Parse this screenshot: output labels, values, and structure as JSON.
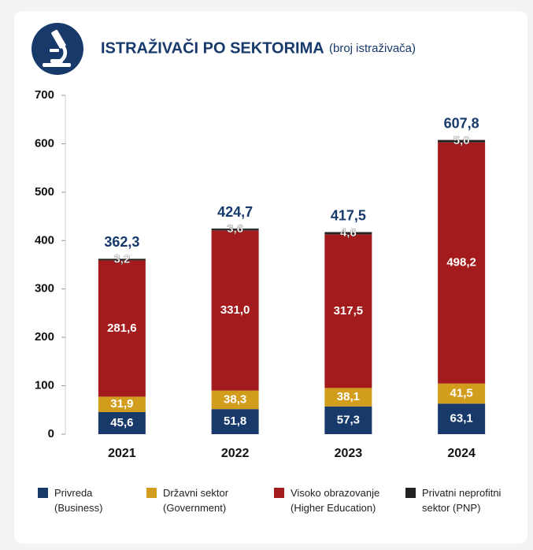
{
  "chart_data": {
    "type": "stacked_bar",
    "title": "ISTRAŽIVAČI PO SEKTORIMA",
    "subtitle": "(broj istraživača)",
    "categories": [
      "2021",
      "2022",
      "2023",
      "2024"
    ],
    "series": [
      {
        "name": "Privreda\n(Business)",
        "color": "#173a6b",
        "values": [
          45.6,
          51.8,
          57.3,
          63.1
        ],
        "value_labels": [
          "45,6",
          "51,8",
          "57,3",
          "63,1"
        ]
      },
      {
        "name": "Državni sektor\n(Government)",
        "color": "#d29d1c",
        "values": [
          31.9,
          38.3,
          38.1,
          41.5
        ],
        "value_labels": [
          "31,9",
          "38,3",
          "38,1",
          "41,5"
        ]
      },
      {
        "name": "Visoko obrazovanje\n(Higher Education)",
        "color": "#a31b1d",
        "values": [
          281.6,
          331.0,
          317.5,
          498.2
        ],
        "value_labels": [
          "281,6",
          "331,0",
          "317,5",
          "498,2"
        ]
      },
      {
        "name": "Privatni neprofitni\nsektor (PNP)",
        "color": "#222222",
        "values": [
          3.2,
          3.6,
          4.6,
          5.0
        ],
        "value_labels": [
          "3,2",
          "3,6",
          "4,6",
          "5,0"
        ]
      }
    ],
    "totals": [
      362.3,
      424.7,
      417.5,
      607.8
    ],
    "total_labels": [
      "362,3",
      "424,7",
      "417,5",
      "607,8"
    ],
    "ylim": [
      0,
      700
    ],
    "yticks": [
      0,
      100,
      200,
      300,
      400,
      500,
      600,
      700
    ],
    "grid": false
  }
}
